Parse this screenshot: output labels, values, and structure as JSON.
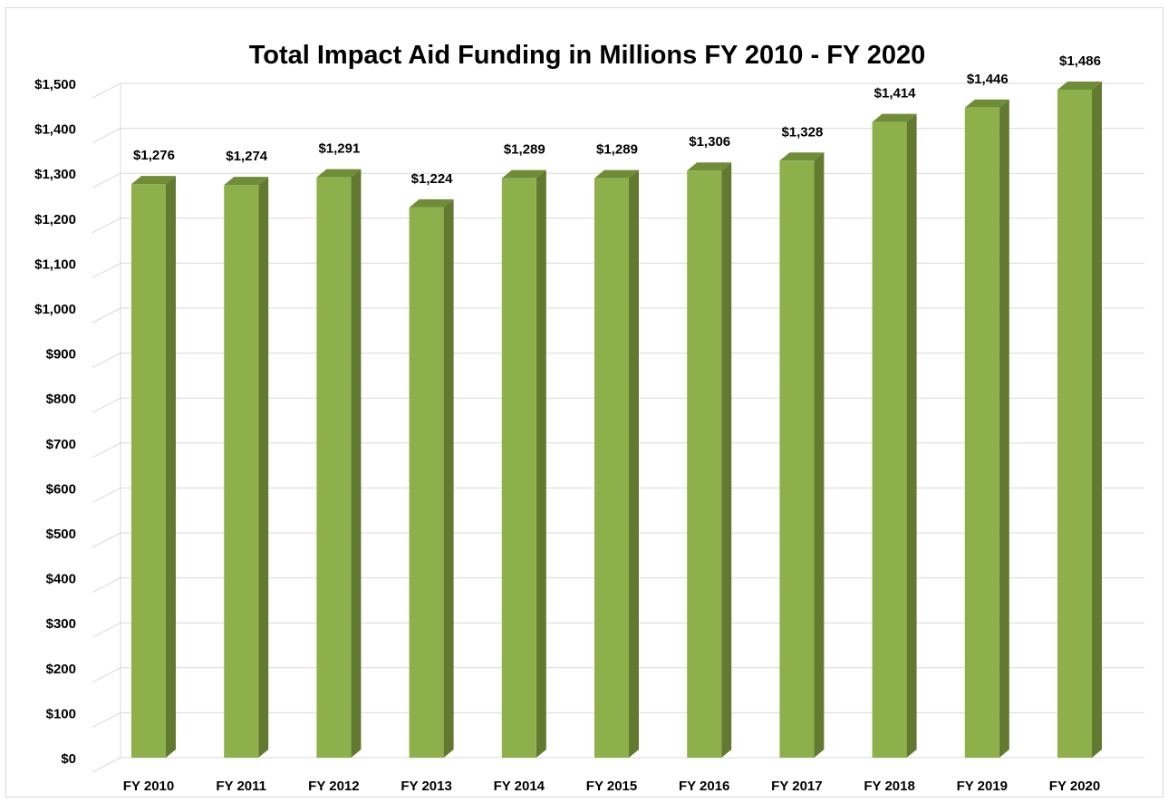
{
  "chart_data": {
    "type": "bar",
    "title": "Total Impact Aid Funding in Millions FY 2010 - FY 2020",
    "xlabel": "",
    "ylabel": "",
    "categories": [
      "FY 2010",
      "FY 2011",
      "FY 2012",
      "FY 2013",
      "FY 2014",
      "FY 2015",
      "FY 2016",
      "FY 2017",
      "FY 2018",
      "FY 2019",
      "FY 2020"
    ],
    "values": [
      1276,
      1274,
      1291,
      1224,
      1289,
      1289,
      1306,
      1328,
      1414,
      1446,
      1486
    ],
    "value_labels": [
      "$1,276",
      "$1,274",
      "$1,291",
      "$1,224",
      "$1,289",
      "$1,289",
      "$1,306",
      "$1,328",
      "$1,414",
      "$1,446",
      "$1,486"
    ],
    "ylim": [
      0,
      1500
    ],
    "yticks": [
      0,
      100,
      200,
      300,
      400,
      500,
      600,
      700,
      800,
      900,
      1000,
      1100,
      1200,
      1300,
      1400,
      1500
    ],
    "ytick_labels": [
      "$0",
      "$100",
      "$200",
      "$300",
      "$400",
      "$500",
      "$600",
      "$700",
      "$800",
      "$900",
      "$1,000",
      "$1,100",
      "$1,200",
      "$1,300",
      "$1,400",
      "$1,500"
    ],
    "grid": true,
    "legend": "none",
    "colors": {
      "bar_front": "#8db04a",
      "bar_side": "#617a2f",
      "bar_top": "#6f8c37",
      "gridline": "#d9d9d9"
    }
  }
}
